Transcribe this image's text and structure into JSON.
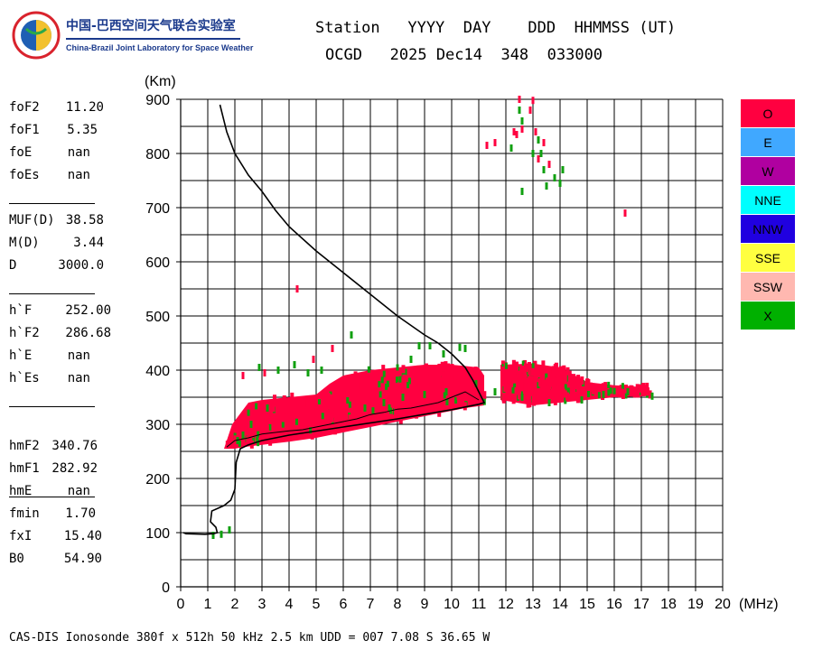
{
  "logo": {
    "title_cn": "中国-巴西空间天气联合实验室",
    "title_en": "China-Brazil Joint Laboratory for Space Weather"
  },
  "header": {
    "line1": "Station   YYYY  DAY    DDD  HHMMSS (UT)",
    "line2": "OCGD   2025 Dec14  348  033000"
  },
  "params": [
    {
      "label": "foF2",
      "value": "11.20"
    },
    {
      "label": "foF1",
      "value": "5.35"
    },
    {
      "label": "foE",
      "value": "nan"
    },
    {
      "label": "foEs",
      "value": "nan"
    },
    {
      "label": "MUF(D)",
      "value": "38.58"
    },
    {
      "label": "M(D)",
      "value": "3.44"
    },
    {
      "label": "D",
      "value": "3000.0"
    },
    {
      "label": "h`F",
      "value": "252.00"
    },
    {
      "label": "h`F2",
      "value": "286.68"
    },
    {
      "label": "h`E",
      "value": "nan"
    },
    {
      "label": "h`Es",
      "value": "nan"
    },
    {
      "label": "hmF2",
      "value": "340.76"
    },
    {
      "label": "hmF1",
      "value": "282.92"
    },
    {
      "label": "hmE",
      "value": "nan"
    },
    {
      "label": "fmin",
      "value": "1.70"
    },
    {
      "label": "fxI",
      "value": "15.40"
    },
    {
      "label": "B0",
      "value": "54.90"
    }
  ],
  "legend": [
    {
      "label": "O",
      "color": "#ff0040"
    },
    {
      "label": "E",
      "color": "#40a8ff"
    },
    {
      "label": "W",
      "color": "#b000a0"
    },
    {
      "label": "NNE",
      "color": "#00ffff"
    },
    {
      "label": "NNW",
      "color": "#2000e0"
    },
    {
      "label": "SSE",
      "color": "#ffff40"
    },
    {
      "label": "SSW",
      "color": "#ffb8b0"
    },
    {
      "label": "X",
      "color": "#00b000"
    }
  ],
  "footer": "CAS-DIS Ionosonde 380f x 512h 50 kHz 2.5 km UDD = 007 7.08 S 36.65 W",
  "chart_data": {
    "type": "scatter",
    "xlabel": "(MHz)",
    "ylabel": "(Km)",
    "xlim": [
      0,
      20
    ],
    "ylim": [
      0,
      900
    ],
    "x_ticks": [
      0,
      1,
      2,
      3,
      4,
      5,
      6,
      7,
      8,
      9,
      10,
      11,
      12,
      13,
      14,
      15,
      16,
      17,
      18,
      19,
      20
    ],
    "y_ticks": [
      0,
      100,
      200,
      300,
      400,
      500,
      600,
      700,
      800,
      900
    ],
    "grid": true,
    "series": [
      {
        "name": "O",
        "color": "#ff0040",
        "kind": "region",
        "polygon": [
          [
            1.6,
            255
          ],
          [
            1.9,
            300
          ],
          [
            2.2,
            320
          ],
          [
            2.5,
            340
          ],
          [
            3,
            345
          ],
          [
            4,
            350
          ],
          [
            5,
            355
          ],
          [
            5.5,
            375
          ],
          [
            6,
            390
          ],
          [
            7,
            400
          ],
          [
            8,
            405
          ],
          [
            9,
            410
          ],
          [
            10,
            410
          ],
          [
            11,
            405
          ],
          [
            11.2,
            390
          ],
          [
            11.2,
            335
          ],
          [
            10.5,
            330
          ],
          [
            9,
            315
          ],
          [
            8,
            305
          ],
          [
            7,
            295
          ],
          [
            6,
            285
          ],
          [
            5,
            275
          ],
          [
            4,
            268
          ],
          [
            3,
            262
          ],
          [
            2.3,
            258
          ],
          [
            2,
            255
          ],
          [
            1.6,
            255
          ]
        ]
      },
      {
        "name": "O",
        "color": "#ff0040",
        "kind": "region",
        "polygon": [
          [
            11.8,
            410
          ],
          [
            13,
            412
          ],
          [
            14,
            405
          ],
          [
            15,
            378
          ],
          [
            16,
            372
          ],
          [
            17.3,
            368
          ],
          [
            17.3,
            352
          ],
          [
            16,
            350
          ],
          [
            15,
            345
          ],
          [
            14,
            340
          ],
          [
            13,
            335
          ],
          [
            11.8,
            345
          ],
          [
            11.8,
            410
          ]
        ]
      },
      {
        "name": "O",
        "color": "#ff0040",
        "kind": "points",
        "points": [
          [
            12.4,
            835
          ],
          [
            12.6,
            845
          ],
          [
            12.9,
            880
          ],
          [
            13.0,
            898
          ],
          [
            13.1,
            840
          ],
          [
            13.4,
            820
          ],
          [
            12.3,
            840
          ],
          [
            11.3,
            815
          ],
          [
            11.6,
            820
          ],
          [
            13.2,
            790
          ],
          [
            16.4,
            690
          ],
          [
            4.3,
            550
          ],
          [
            5.6,
            440
          ],
          [
            4.9,
            420
          ],
          [
            12.5,
            900
          ],
          [
            13.6,
            780
          ],
          [
            3.1,
            395
          ],
          [
            2.3,
            390
          ]
        ]
      },
      {
        "name": "X",
        "color": "#10a010",
        "kind": "points",
        "points": [
          [
            12.5,
            880
          ],
          [
            12.6,
            860
          ],
          [
            13.2,
            825
          ],
          [
            13.3,
            800
          ],
          [
            13.4,
            770
          ],
          [
            13.5,
            740
          ],
          [
            13.8,
            755
          ],
          [
            14.0,
            745
          ],
          [
            14.1,
            770
          ],
          [
            12.6,
            730
          ],
          [
            13.0,
            800
          ],
          [
            12.2,
            810
          ],
          [
            6.3,
            465
          ],
          [
            10.3,
            442
          ],
          [
            9.7,
            430
          ],
          [
            8.8,
            445
          ],
          [
            4.2,
            410
          ],
          [
            3.6,
            400
          ],
          [
            2.9,
            405
          ],
          [
            2.1,
            270
          ],
          [
            2.3,
            280
          ],
          [
            6.8,
            330
          ],
          [
            7.5,
            340
          ],
          [
            8.2,
            350
          ],
          [
            9.0,
            355
          ],
          [
            9.8,
            360
          ],
          [
            10.9,
            375
          ],
          [
            11.6,
            360
          ],
          [
            12.6,
            350
          ],
          [
            13.6,
            340
          ],
          [
            14.8,
            345
          ],
          [
            15.6,
            355
          ],
          [
            16.5,
            360
          ],
          [
            17.4,
            352
          ],
          [
            1.2,
            95
          ],
          [
            1.5,
            97
          ],
          [
            1.8,
            105
          ],
          [
            5.2,
            400
          ],
          [
            4.7,
            395
          ],
          [
            8.5,
            420
          ],
          [
            10.5,
            440
          ],
          [
            7.7,
            330
          ],
          [
            9.2,
            445
          ],
          [
            3.2,
            330
          ],
          [
            2.6,
            300
          ]
        ]
      }
    ],
    "profile": {
      "name": "profile",
      "color": "#000000",
      "points": [
        [
          1.45,
          890
        ],
        [
          1.7,
          840
        ],
        [
          2.0,
          800
        ],
        [
          2.5,
          760
        ],
        [
          3.0,
          730
        ],
        [
          3.5,
          695
        ],
        [
          4.0,
          665
        ],
        [
          5.0,
          620
        ],
        [
          6.0,
          580
        ],
        [
          7.0,
          540
        ],
        [
          8.0,
          500
        ],
        [
          9.0,
          465
        ],
        [
          9.5,
          450
        ],
        [
          10.0,
          430
        ],
        [
          10.5,
          405
        ],
        [
          10.8,
          380
        ],
        [
          11.0,
          360
        ],
        [
          11.2,
          340
        ],
        [
          11.0,
          337
        ],
        [
          10.0,
          327
        ],
        [
          8.0,
          310
        ],
        [
          6.0,
          295
        ],
        [
          4.0,
          280
        ],
        [
          3.0,
          270
        ],
        [
          2.5,
          262
        ],
        [
          2.2,
          255
        ],
        [
          2.05,
          230
        ],
        [
          2.0,
          180
        ],
        [
          1.85,
          160
        ],
        [
          1.6,
          150
        ],
        [
          1.15,
          140
        ],
        [
          1.1,
          120
        ],
        [
          1.3,
          110
        ],
        [
          1.35,
          100
        ],
        [
          1.2,
          98
        ],
        [
          0.9,
          97
        ],
        [
          0.2,
          98
        ],
        [
          0.1,
          100
        ]
      ]
    },
    "trace": {
      "name": "trace",
      "color": "#000000",
      "points": [
        [
          1.7,
          258
        ],
        [
          2.0,
          270
        ],
        [
          2.5,
          275
        ],
        [
          3.0,
          282
        ],
        [
          3.5,
          285
        ],
        [
          4.0,
          288
        ],
        [
          4.5,
          290
        ],
        [
          5.0,
          295
        ],
        [
          5.5,
          300
        ],
        [
          6.0,
          305
        ],
        [
          6.5,
          310
        ],
        [
          7.0,
          318
        ],
        [
          7.5,
          322
        ],
        [
          8.0,
          328
        ],
        [
          8.5,
          330
        ],
        [
          9.0,
          335
        ],
        [
          9.5,
          340
        ],
        [
          10.0,
          350
        ],
        [
          10.5,
          360
        ],
        [
          11.0,
          345
        ]
      ]
    }
  }
}
